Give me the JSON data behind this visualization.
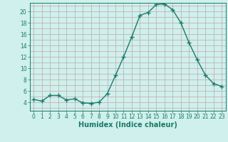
{
  "x": [
    0,
    1,
    2,
    3,
    4,
    5,
    6,
    7,
    8,
    9,
    10,
    11,
    12,
    13,
    14,
    15,
    16,
    17,
    18,
    19,
    20,
    21,
    22,
    23
  ],
  "y": [
    4.5,
    4.2,
    5.2,
    5.2,
    4.4,
    4.6,
    3.9,
    3.8,
    4.0,
    5.5,
    8.7,
    12.0,
    15.5,
    19.3,
    19.8,
    21.2,
    21.3,
    20.3,
    18.0,
    14.5,
    11.5,
    8.8,
    7.3,
    6.8
  ],
  "line_color": "#1a7a6a",
  "marker": "+",
  "markersize": 4,
  "markeredgewidth": 1.0,
  "linewidth": 1.0,
  "bg_color": "#cff0ec",
  "grid_color": "#c0a8a8",
  "xlabel": "Humidex (Indice chaleur)",
  "xlabel_fontsize": 7,
  "xlim": [
    -0.5,
    23.5
  ],
  "ylim": [
    2.5,
    21.5
  ],
  "yticks": [
    4,
    6,
    8,
    10,
    12,
    14,
    16,
    18,
    20
  ],
  "xticks": [
    0,
    1,
    2,
    3,
    4,
    5,
    6,
    7,
    8,
    9,
    10,
    11,
    12,
    13,
    14,
    15,
    16,
    17,
    18,
    19,
    20,
    21,
    22,
    23
  ],
  "tick_fontsize": 5.5,
  "figsize": [
    3.2,
    2.0
  ],
  "dpi": 100
}
